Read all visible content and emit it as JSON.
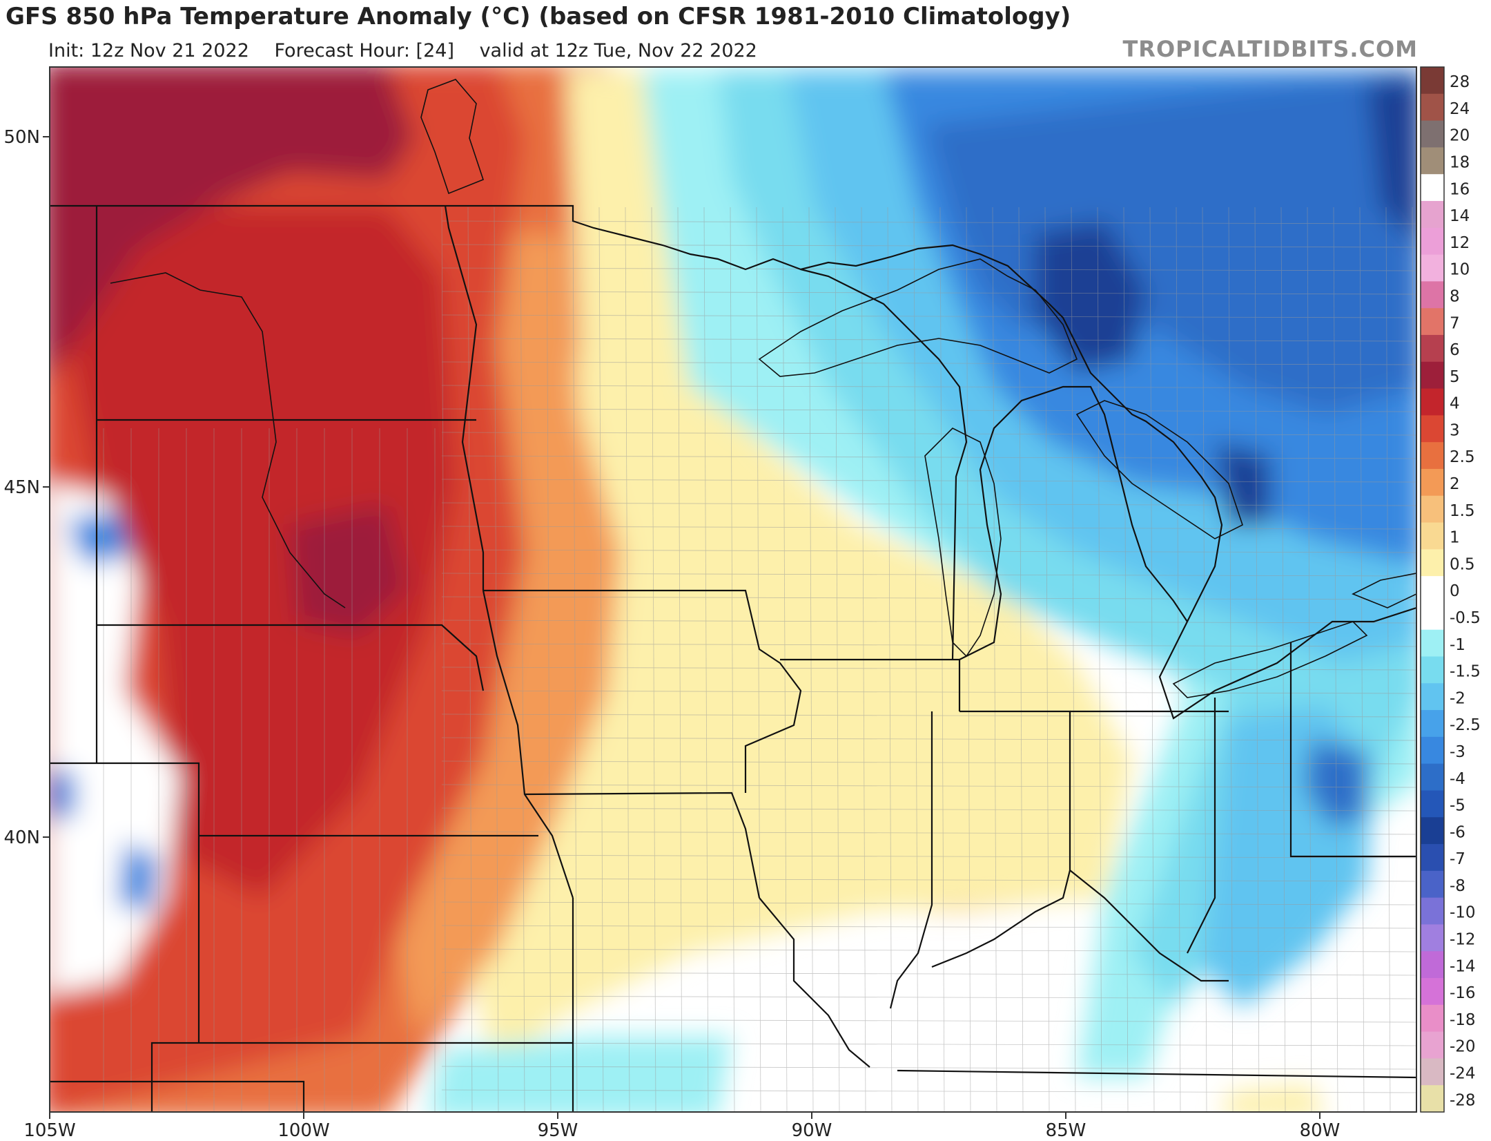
{
  "header": {
    "title": "GFS 850 hPa Temperature Anomaly (°C) (based on CFSR 1981-2010 Climatology)",
    "init": "Init: 12z Nov 21 2022",
    "forecast_hour": "Forecast Hour: [24]",
    "valid": "valid at 12z Tue, Nov 22 2022",
    "brand": "TROPICALTIDBITS.COM"
  },
  "axes": {
    "lon_labels": [
      "105W",
      "100W",
      "95W",
      "90W",
      "85W",
      "80W"
    ],
    "lat_labels": [
      "50N",
      "45N",
      "40N"
    ]
  },
  "colorbar": {
    "labels": [
      "28",
      "24",
      "20",
      "18",
      "16",
      "14",
      "12",
      "10",
      "8",
      "7",
      "6",
      "5",
      "4",
      "3",
      "2.5",
      "2",
      "1.5",
      "1",
      "0.5",
      "0",
      "-0.5",
      "-1",
      "-1.5",
      "-2",
      "-2.5",
      "-3",
      "-4",
      "-5",
      "-6",
      "-7",
      "-8",
      "-10",
      "-12",
      "-14",
      "-16",
      "-18",
      "-20",
      "-24",
      "-28"
    ],
    "colors": [
      "#7a3a35",
      "#a05348",
      "#7e7070",
      "#a08e78",
      "#ffffff",
      "#e6a3cf",
      "#ec9fd8",
      "#f2b1de",
      "#dd74a6",
      "#e27468",
      "#b6404f",
      "#9d1f3a",
      "#c3252c",
      "#db4733",
      "#e8703f",
      "#f39a56",
      "#f7c07b",
      "#f9d992",
      "#fdf0ab",
      "#ffffff",
      "#ffffff",
      "#9ef0f4",
      "#78dcef",
      "#61c4f0",
      "#47a2ea",
      "#3888e0",
      "#2d6ec8",
      "#2457b8",
      "#1a3f94",
      "#2a4fb0",
      "#4a63c8",
      "#7a72d8",
      "#a07fe0",
      "#c06ad8",
      "#d572d8",
      "#e98ec8",
      "#e8a3d1",
      "#d9b9c3",
      "#e8e0a8"
    ]
  },
  "map": {
    "colors": {
      "dark_red": "#9d1f3a",
      "red": "#c3252c",
      "red_orange": "#db4733",
      "orange": "#e8703f",
      "light_orange": "#f39a56",
      "tan": "#f7c07b",
      "pale_yellow": "#fdf0ab",
      "white": "#ffffff",
      "light_cyan": "#9ef0f4",
      "cyan": "#78dcef",
      "light_blue": "#61c4f0",
      "blue": "#3888e0",
      "mid_blue": "#2d6ec8",
      "dark_blue": "#1a3f94"
    }
  }
}
